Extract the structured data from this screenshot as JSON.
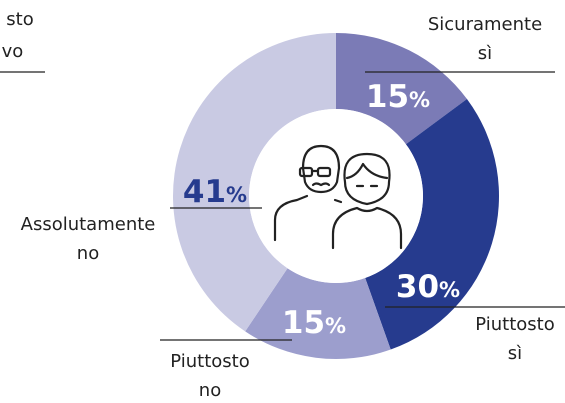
{
  "chart_data": {
    "type": "donut",
    "categories": [
      "Sicuramente\nsì",
      "Piuttosto\nsì",
      "Piuttosto\nno",
      "Assolutamente\nno"
    ],
    "values": [
      15,
      30,
      15,
      41
    ],
    "unit": "%",
    "colors": [
      "#7b7bb6",
      "#263b8e",
      "#9c9ecd",
      "#c9cae3"
    ],
    "annotations": [
      "sto",
      "vo"
    ]
  }
}
